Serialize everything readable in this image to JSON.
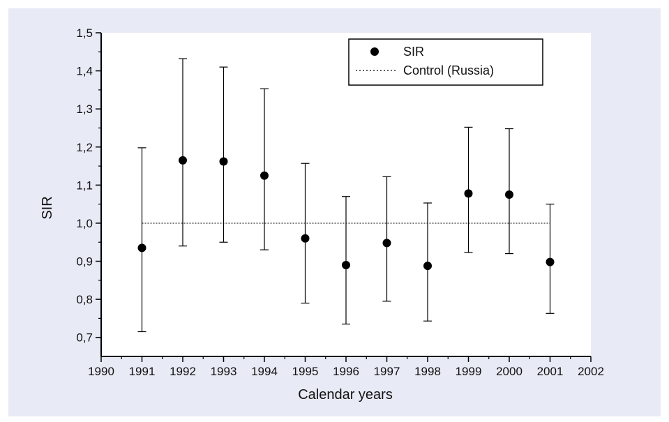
{
  "chart_data": {
    "type": "scatter",
    "title": "",
    "xlabel": "Calendar years",
    "ylabel": "SIR",
    "xlim": [
      1990,
      2002
    ],
    "ylim": [
      0.65,
      1.5
    ],
    "x_ticks": [
      "1990",
      "1991",
      "1992",
      "1993",
      "1994",
      "1995",
      "1996",
      "1997",
      "1998",
      "1999",
      "2000",
      "2001",
      "2002"
    ],
    "y_ticks": [
      "0,7",
      "0,8",
      "0,9",
      "1,0",
      "1,1",
      "1,2",
      "1,3",
      "1,4",
      "1,5"
    ],
    "y_tick_values": [
      0.7,
      0.8,
      0.9,
      1.0,
      1.1,
      1.2,
      1.3,
      1.4,
      1.5
    ],
    "grid": false,
    "legend_position": "top-right",
    "series": [
      {
        "name": "SIR",
        "marker": "circle",
        "color": "#000000",
        "x": [
          1991,
          1992,
          1993,
          1994,
          1995,
          1996,
          1997,
          1998,
          1999,
          2000,
          2001
        ],
        "y": [
          0.935,
          1.165,
          1.162,
          1.125,
          0.96,
          0.89,
          0.948,
          0.888,
          1.078,
          1.075,
          0.898
        ],
        "lower": [
          0.715,
          0.94,
          0.95,
          0.93,
          0.79,
          0.735,
          0.795,
          0.743,
          0.923,
          0.92,
          0.763
        ],
        "upper": [
          1.198,
          1.432,
          1.41,
          1.353,
          1.157,
          1.07,
          1.122,
          1.053,
          1.252,
          1.248,
          1.05
        ]
      },
      {
        "name": "Control (Russia)",
        "line_style": "dotted",
        "color": "#000000",
        "x": [
          1991,
          2001
        ],
        "y": [
          1.0,
          1.0
        ]
      }
    ]
  }
}
